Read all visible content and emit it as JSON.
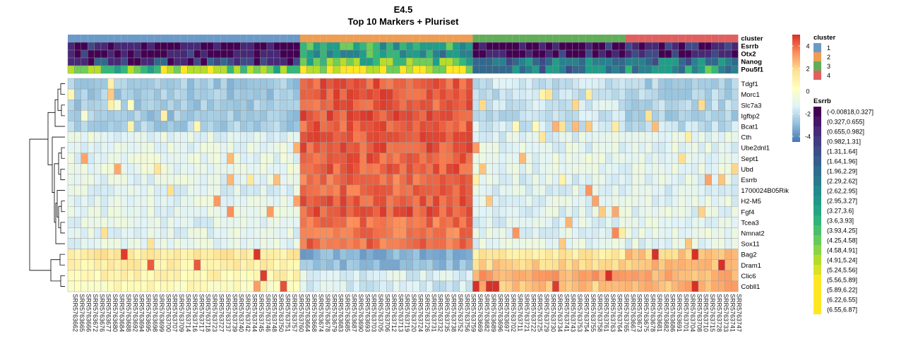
{
  "chart_data": {
    "type": "heatmap",
    "title": "E4.5",
    "subtitle": "Top 10 Markers + Pluriset",
    "columns": [
      "SRR5763662",
      "SRR5763665",
      "SRR5763666",
      "SRR5763672",
      "SRR5763676",
      "SRR5763677",
      "SRR5763680",
      "SRR5763684",
      "SRR5763688",
      "SRR5763692",
      "SRR5763694",
      "SRR5763695",
      "SRR5763698",
      "SRR5763699",
      "SRR5763700",
      "SRR5763707",
      "SRR5763709",
      "SRR5763714",
      "SRR5763716",
      "SRR5763717",
      "SRR5763718",
      "SRR5763723",
      "SRR5763727",
      "SRR5763737",
      "SRR5763739",
      "SRR5763740",
      "SRR5763742",
      "SRR5763744",
      "SRR5763745",
      "SRR5763746",
      "SRR5763748",
      "SRR5763750",
      "SRR5763751",
      "SRR5763757",
      "SRR5763760",
      "SRR5763664",
      "SRR5763668",
      "SRR5763674",
      "SRR5763678",
      "SRR5763679",
      "SRR5763683",
      "SRR5763685",
      "SRR5763687",
      "SRR5763690",
      "SRR5763693",
      "SRR5763703",
      "SRR5763705",
      "SRR5763706",
      "SRR5763712",
      "SRR5763713",
      "SRR5763719",
      "SRR5763720",
      "SRR5763724",
      "SRR5763726",
      "SRR5763731",
      "SRR5763732",
      "SRR5763735",
      "SRR5763738",
      "SRR5763752",
      "SRR5763756",
      "SRR5763759",
      "SRR5763669",
      "SRR5763682",
      "SRR5763689",
      "SRR5763696",
      "SRR5763697",
      "SRR5763702",
      "SRR5763711",
      "SRR5763721",
      "SRR5763722",
      "SRR5763725",
      "SRR5763729",
      "SRR5763730",
      "SRR5763734",
      "SRR5763741",
      "SRR5763743",
      "SRR5763753",
      "SRR5763754",
      "SRR5763755",
      "SRR5763758",
      "SRR5763761",
      "SRR5763763",
      "SRR5763764",
      "SRR5763765",
      "SRR5763667",
      "SRR5763673",
      "SRR5763675",
      "SRR5763678",
      "SRR5763681",
      "SRR5763682",
      "SRR5763686",
      "SRR5763691",
      "SRR5763701",
      "SRR5763704",
      "SRR5763708",
      "SRR5763710",
      "SRR5763715",
      "SRR5763728",
      "SRR5763733",
      "SRR5763741",
      "SRR5763747"
    ],
    "cluster_sizes": [
      35,
      26,
      23,
      17
    ],
    "rows": [
      "Tdgf1",
      "Morc1",
      "Slc7a3",
      "Igfbp2",
      "Bcat1",
      "Cth",
      "Ube2dnl1",
      "Sept1",
      "Ubd",
      "Esrrb",
      "1700024B05Rik",
      "H2-M5",
      "Fgf4",
      "Tcea3",
      "Nmnat2",
      "Sox11",
      "Bag2",
      "Dram1",
      "Clic6",
      "Cobll1"
    ],
    "row_block_means": {
      "Tdgf1": [
        -2.6,
        4.3,
        -1.8,
        -2.4
      ],
      "Morc1": [
        -2.6,
        4.3,
        -1.9,
        -2.2
      ],
      "Slc7a3": [
        -2.5,
        4.2,
        -1.6,
        -2.2
      ],
      "Igfbp2": [
        -2.6,
        4.4,
        -1.9,
        -2.4
      ],
      "Bcat1": [
        -2.4,
        4.2,
        -1.6,
        -2.0
      ],
      "Cth": [
        -1.1,
        4.3,
        -1.3,
        -1.1
      ],
      "Ube2dnl1": [
        -1.0,
        4.3,
        -1.2,
        -1.1
      ],
      "Sept1": [
        -1.0,
        4.2,
        -1.0,
        -1.2
      ],
      "Ubd": [
        -0.9,
        4.2,
        -1.1,
        -1.0
      ],
      "Esrrb": [
        -1.1,
        3.9,
        -1.3,
        -1.1
      ],
      "1700024B05Rik": [
        -1.2,
        4.0,
        -1.2,
        -1.3
      ],
      "H2-M5": [
        -1.1,
        4.2,
        -1.2,
        -1.1
      ],
      "Fgf4": [
        -1.1,
        4.3,
        -1.2,
        -1.1
      ],
      "Tcea3": [
        -1.2,
        3.9,
        -1.2,
        -1.1
      ],
      "Nmnat2": [
        -1.1,
        3.8,
        -1.1,
        -1.0
      ],
      "Sox11": [
        -1.1,
        4.0,
        -1.1,
        -1.2
      ],
      "Bag2": [
        1.3,
        -3.2,
        1.3,
        2.2
      ],
      "Dram1": [
        1.0,
        -2.9,
        2.0,
        2.5
      ],
      "Clic6": [
        0.8,
        -1.4,
        3.0,
        2.8
      ],
      "Cobll1": [
        0.4,
        -1.6,
        2.4,
        2.6
      ]
    },
    "color_scale": {
      "min": -4.5,
      "max": 5,
      "ticks": [
        4,
        2,
        0,
        -2,
        -4
      ],
      "colors": [
        "#4575b4",
        "#91bfdb",
        "#e0f3f8",
        "#ffffbf",
        "#fee090",
        "#fc8d59",
        "#d73027"
      ]
    },
    "annotation_rows": [
      "cluster",
      "Esrrb",
      "Otx2",
      "Nanog",
      "Pou5f1"
    ],
    "cluster_legend": {
      "title": "cluster",
      "items": [
        {
          "label": "1",
          "color": "#6c9ac8"
        },
        {
          "label": "2",
          "color": "#ef9d52"
        },
        {
          "label": "3",
          "color": "#62ad5a"
        },
        {
          "label": "4",
          "color": "#e06060"
        }
      ]
    },
    "esrrb_legend": {
      "title": "Esrrb",
      "items": [
        "(-0.00818,0.327]",
        "(0.327,0.655]",
        "(0.655,0.982]",
        "(0.982,1.31]",
        "(1.31,1.64]",
        "(1.64,1.96]",
        "(1.96,2.29]",
        "(2.29,2.62]",
        "(2.62,2.95]",
        "(2.95,3.27]",
        "(3.27,3.6]",
        "(3.6,3.93]",
        "(3.93,4.25]",
        "(4.25,4.58]",
        "(4.58,4.91]",
        "(4.91,5.24]",
        "(5.24,5.56]",
        "(5.56,5.89]",
        "(5.89,6.22]",
        "(6.22,6.55]",
        "(6.55,6.87]"
      ]
    },
    "grid": true,
    "row_dendrogram": true
  }
}
